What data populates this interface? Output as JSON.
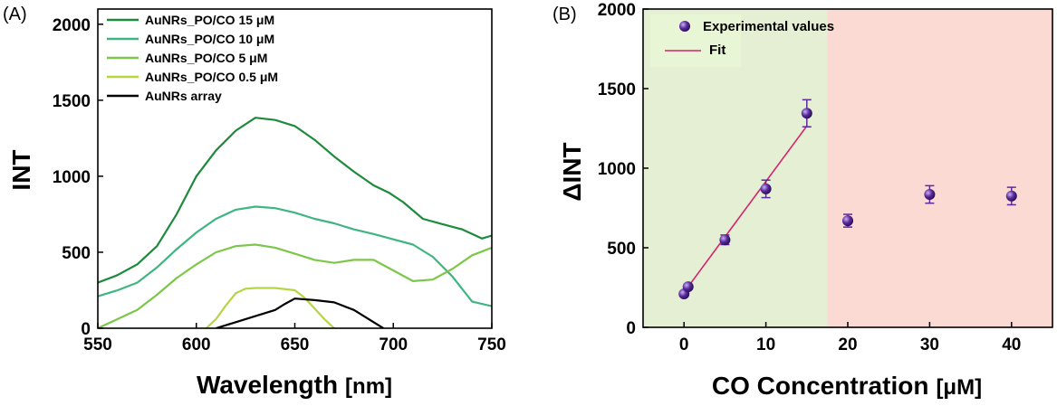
{
  "figure": {
    "panels": [
      "(A)",
      "(B)"
    ]
  },
  "chart_data": [
    {
      "type": "line",
      "panel": "(A)",
      "xlabel": "Wavelength",
      "xunit": "[nm]",
      "ylabel": "INT",
      "xlim": [
        550,
        750
      ],
      "ylim": [
        0,
        2100
      ],
      "xticks": [
        550,
        600,
        650,
        700,
        750
      ],
      "yticks": [
        0,
        500,
        1000,
        1500,
        2000
      ],
      "legend_position": "top-left",
      "series": [
        {
          "name": "AuNRs_PO/CO 15 μM",
          "color": "#1e8a3c",
          "points": [
            [
              550,
              300
            ],
            [
              560,
              350
            ],
            [
              570,
              420
            ],
            [
              580,
              540
            ],
            [
              590,
              750
            ],
            [
              600,
              1000
            ],
            [
              610,
              1170
            ],
            [
              620,
              1300
            ],
            [
              630,
              1385
            ],
            [
              640,
              1370
            ],
            [
              650,
              1330
            ],
            [
              660,
              1240
            ],
            [
              670,
              1130
            ],
            [
              680,
              1030
            ],
            [
              690,
              940
            ],
            [
              698,
              890
            ],
            [
              705,
              830
            ],
            [
              715,
              720
            ],
            [
              725,
              685
            ],
            [
              735,
              650
            ],
            [
              745,
              590
            ],
            [
              750,
              610
            ]
          ]
        },
        {
          "name": "AuNRs_PO/CO 10 μM",
          "color": "#3fb582",
          "points": [
            [
              550,
              210
            ],
            [
              560,
              250
            ],
            [
              570,
              300
            ],
            [
              580,
              400
            ],
            [
              590,
              520
            ],
            [
              600,
              630
            ],
            [
              610,
              720
            ],
            [
              620,
              780
            ],
            [
              630,
              800
            ],
            [
              640,
              790
            ],
            [
              650,
              760
            ],
            [
              660,
              720
            ],
            [
              670,
              690
            ],
            [
              680,
              650
            ],
            [
              690,
              620
            ],
            [
              700,
              585
            ],
            [
              710,
              550
            ],
            [
              720,
              470
            ],
            [
              730,
              340
            ],
            [
              740,
              175
            ],
            [
              750,
              145
            ]
          ]
        },
        {
          "name": "AuNRs_PO/CO 5 μM",
          "color": "#7cc74a",
          "points": [
            [
              550,
              0
            ],
            [
              560,
              60
            ],
            [
              570,
              120
            ],
            [
              580,
              220
            ],
            [
              590,
              330
            ],
            [
              600,
              420
            ],
            [
              610,
              500
            ],
            [
              620,
              540
            ],
            [
              630,
              550
            ],
            [
              640,
              530
            ],
            [
              650,
              490
            ],
            [
              660,
              450
            ],
            [
              670,
              430
            ],
            [
              680,
              450
            ],
            [
              690,
              450
            ],
            [
              700,
              380
            ],
            [
              710,
              310
            ],
            [
              720,
              320
            ],
            [
              730,
              390
            ],
            [
              740,
              480
            ],
            [
              750,
              530
            ]
          ]
        },
        {
          "name": "AuNRs_PO/CO 0.5 μM",
          "color": "#b5d640",
          "points": [
            [
              605,
              0
            ],
            [
              610,
              60
            ],
            [
              615,
              150
            ],
            [
              620,
              230
            ],
            [
              625,
              260
            ],
            [
              630,
              265
            ],
            [
              640,
              265
            ],
            [
              650,
              250
            ],
            [
              655,
              200
            ],
            [
              660,
              130
            ],
            [
              665,
              60
            ],
            [
              670,
              0
            ]
          ]
        },
        {
          "name": "AuNRs array",
          "color": "#000000",
          "points": [
            [
              610,
              0
            ],
            [
              620,
              40
            ],
            [
              630,
              80
            ],
            [
              640,
              120
            ],
            [
              645,
              160
            ],
            [
              650,
              195
            ],
            [
              660,
              185
            ],
            [
              670,
              170
            ],
            [
              680,
              120
            ],
            [
              690,
              40
            ],
            [
              695,
              0
            ]
          ]
        }
      ]
    },
    {
      "type": "scatter",
      "panel": "(B)",
      "xlabel": "CO Concentration",
      "xunit": "[μM]",
      "ylabel": "ΔINT",
      "xlim": [
        -5,
        45
      ],
      "ylim": [
        0,
        2000
      ],
      "xticks": [
        0,
        10,
        20,
        30,
        40
      ],
      "yticks": [
        0,
        500,
        1000,
        1500,
        2000
      ],
      "legend_position": "top-left",
      "regions": [
        {
          "from": -5,
          "to": 17.5,
          "color": "#e4efd4"
        },
        {
          "from": 17.5,
          "to": 45,
          "color": "#fadad3"
        }
      ],
      "series": [
        {
          "name": "Experimental values",
          "color": "#5b2a9e",
          "x": [
            0,
            0.5,
            5,
            10,
            15,
            20,
            30,
            40
          ],
          "y": [
            210,
            255,
            550,
            870,
            1345,
            670,
            835,
            825
          ],
          "err": [
            15,
            15,
            30,
            55,
            85,
            40,
            55,
            55
          ]
        },
        {
          "name": "Fit",
          "color": "#d6226c",
          "type": "line",
          "x": [
            0,
            15
          ],
          "y": [
            220,
            1265
          ]
        }
      ]
    }
  ]
}
